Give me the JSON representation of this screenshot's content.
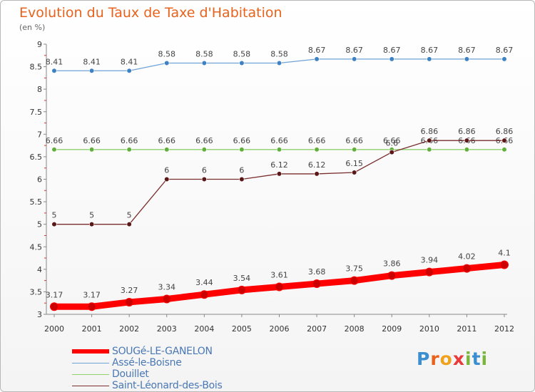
{
  "header": {
    "title": "Evolution du Taux de Taxe d'Habitation",
    "subtitle": "(en %)"
  },
  "logo": {
    "text": "Proxiti"
  },
  "chart_data": {
    "type": "line",
    "x": [
      "2000",
      "2001",
      "2002",
      "2003",
      "2004",
      "2005",
      "2006",
      "2007",
      "2008",
      "2009",
      "2010",
      "2011",
      "2012"
    ],
    "ylim": [
      3,
      9
    ],
    "yticks": [
      "3",
      "3.5",
      "4",
      "4.5",
      "5",
      "5.5",
      "6",
      "6.5",
      "7",
      "7.5",
      "8",
      "8.5",
      "9"
    ],
    "grid": false,
    "legend_position": "bottom-left",
    "series": [
      {
        "name": "SOUGé-LE-GANELON",
        "color": "#ff0000",
        "marker_color": "#cc0000",
        "values": [
          3.17,
          3.17,
          3.27,
          3.34,
          3.44,
          3.54,
          3.61,
          3.68,
          3.75,
          3.86,
          3.94,
          4.02,
          4.1
        ],
        "labels": [
          "3.17",
          "3.17",
          "3.27",
          "3.34",
          "3.44",
          "3.54",
          "3.61",
          "3.68",
          "3.75",
          "3.86",
          "3.94",
          "4.02",
          "4.1"
        ]
      },
      {
        "name": "Assé-le-Boisne",
        "color": "#6fa3d6",
        "marker_color": "#3f82c4",
        "values": [
          8.41,
          8.41,
          8.41,
          8.58,
          8.58,
          8.58,
          8.58,
          8.67,
          8.67,
          8.67,
          8.67,
          8.67,
          8.67
        ],
        "labels": [
          "8.41",
          "8.41",
          "8.41",
          "8.58",
          "8.58",
          "8.58",
          "8.58",
          "8.67",
          "8.67",
          "8.67",
          "8.67",
          "8.67",
          "8.67"
        ]
      },
      {
        "name": "Douillet",
        "color": "#8fd16a",
        "marker_color": "#62b03c",
        "values": [
          6.66,
          6.66,
          6.66,
          6.66,
          6.66,
          6.66,
          6.66,
          6.66,
          6.66,
          6.66,
          6.66,
          6.66,
          6.66
        ],
        "labels": [
          "6.66",
          "6.66",
          "6.66",
          "6.66",
          "6.66",
          "6.66",
          "6.66",
          "6.66",
          "6.66",
          "6.66",
          "6.66",
          "6.66",
          "6.66"
        ]
      },
      {
        "name": "Saint-Léonard-des-Bois",
        "color": "#7a2e2e",
        "marker_color": "#5a1818",
        "values": [
          5,
          5,
          5,
          6,
          6,
          6,
          6.12,
          6.12,
          6.15,
          6.6,
          6.86,
          6.86,
          6.86
        ],
        "labels": [
          "5",
          "5",
          "5",
          "6",
          "6",
          "6",
          "6.12",
          "6.12",
          "6.15",
          "6.6",
          "6.86",
          "6.86",
          "6.86"
        ]
      }
    ]
  }
}
